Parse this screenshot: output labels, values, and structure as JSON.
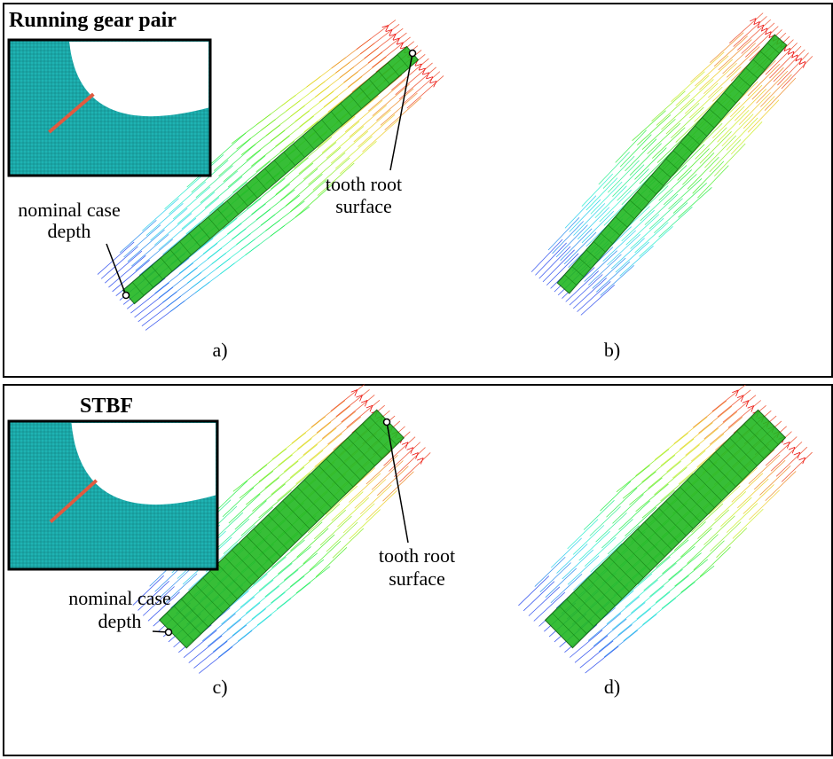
{
  "panels": [
    {
      "title": "Running gear pair",
      "root_label": [
        "tooth root",
        "surface"
      ],
      "depth_label": [
        "nominal case",
        "depth"
      ],
      "label_left": "a)",
      "label_right": "b)"
    },
    {
      "title": "STBF",
      "root_label": [
        "tooth root",
        "surface"
      ],
      "depth_label": [
        "nominal case",
        "depth"
      ],
      "label_left": "c)",
      "label_right": "d)"
    }
  ]
}
